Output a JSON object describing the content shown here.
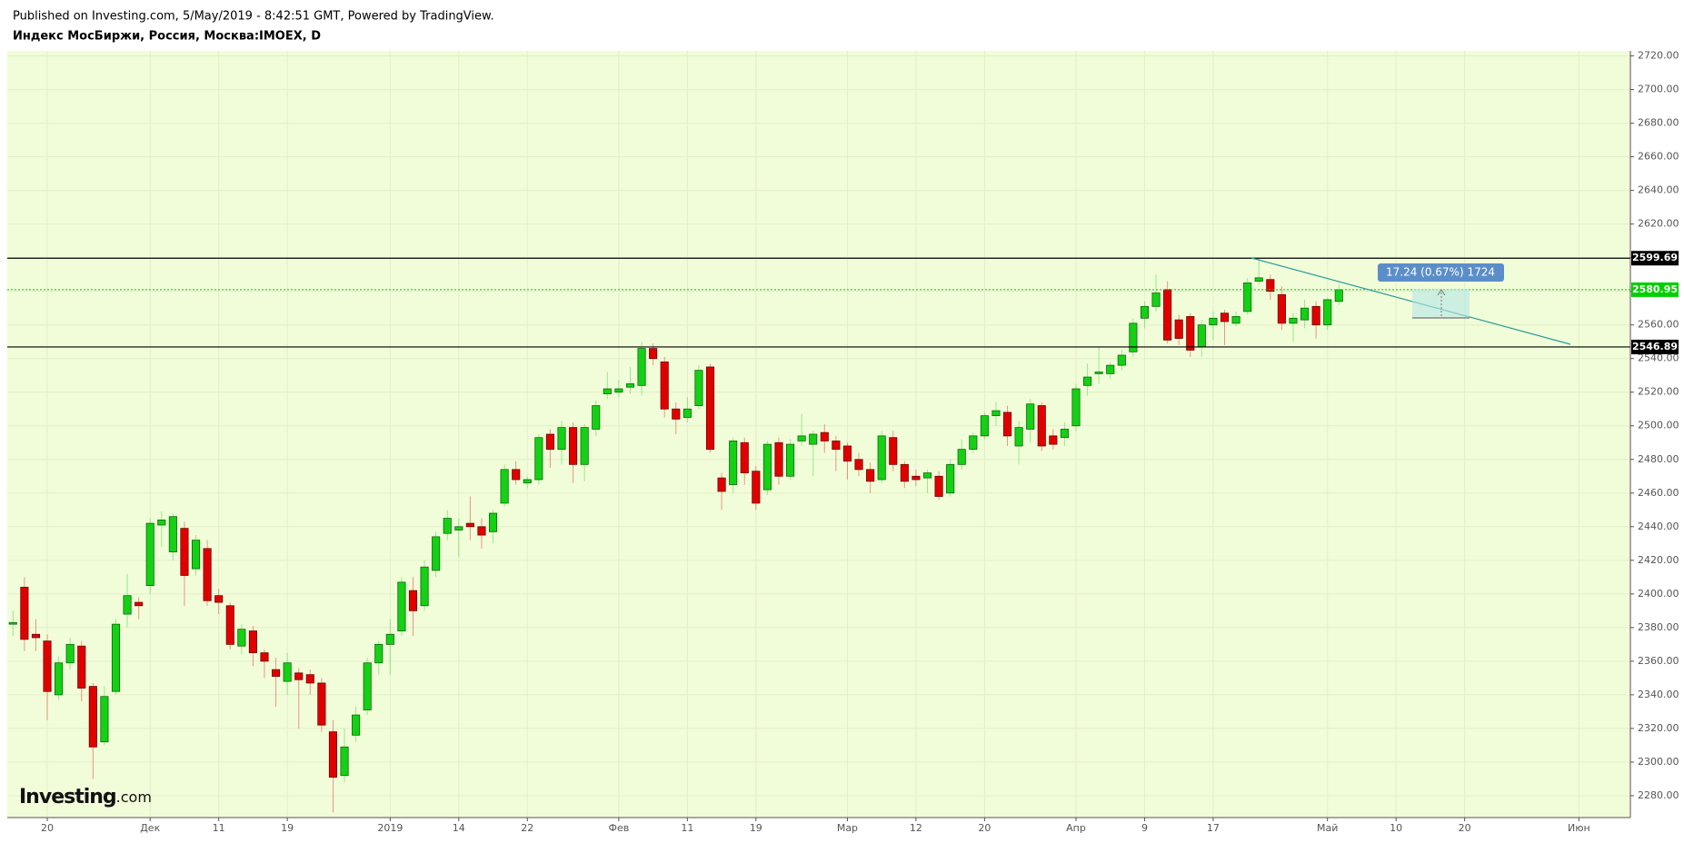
{
  "header": {
    "published": "Published on Investing.com, 5/May/2019 - 8:42:51 GMT, Powered by TradingView.",
    "symbol": "Индекс МосБиржи, Россия, Москва:IMOEX, D"
  },
  "chart_data": {
    "type": "candlestick",
    "categories": [
      null,
      null,
      null,
      "20",
      null,
      null,
      null,
      null,
      null,
      null,
      null,
      null,
      "Дек",
      null,
      null,
      null,
      null,
      null,
      "11",
      null,
      null,
      null,
      null,
      null,
      "19",
      null,
      null,
      null,
      null,
      null,
      null,
      null,
      null,
      "2019",
      null,
      null,
      null,
      null,
      null,
      "14",
      null,
      null,
      null,
      null,
      null,
      "22",
      null,
      null,
      null,
      null,
      null,
      null,
      null,
      "Фев",
      null,
      null,
      null,
      null,
      null,
      "11",
      null,
      null,
      null,
      null,
      null,
      "19",
      null,
      null,
      null,
      null,
      null,
      null,
      null,
      "Мар",
      null,
      null,
      null,
      null,
      null,
      "12",
      null,
      null,
      null,
      null,
      null,
      "20",
      null,
      null,
      null,
      null,
      null,
      null,
      null,
      "Апр",
      null,
      null,
      null,
      null,
      null,
      "9",
      null,
      null,
      null,
      null,
      null,
      "17",
      null,
      null,
      null,
      null,
      null,
      null,
      null,
      null,
      null,
      "Май",
      null,
      null,
      null,
      null,
      null,
      "10",
      null,
      null,
      null,
      null,
      null,
      "20",
      null,
      null,
      null,
      null,
      null,
      null,
      null,
      null,
      null,
      "Июн",
      null,
      null,
      null,
      null
    ],
    "open": [
      2382,
      2404,
      2376,
      2372,
      2340,
      2359,
      2369,
      2345,
      2312,
      2342,
      2388,
      2395,
      2405,
      2441,
      2425,
      2439,
      2415,
      2427,
      2399,
      2393,
      2369,
      2378,
      2365,
      2355,
      2348,
      2353,
      2352,
      2347,
      2318,
      2292,
      2316,
      2331,
      2359,
      2370,
      2378,
      2402,
      2393,
      2414,
      2436,
      2438,
      2442,
      2440,
      2437,
      2454,
      2474,
      2466,
      2468,
      2495,
      2486,
      2499,
      2477,
      2498,
      2519,
      2520,
      2523,
      2524,
      2546,
      2538,
      2510,
      2505,
      2512,
      2535,
      2469,
      2465,
      2490,
      2473,
      2462,
      2490,
      2470,
      2491,
      2489,
      2496,
      2491,
      2488,
      2480,
      2474,
      2468,
      2493,
      2477,
      2470,
      2469,
      2470,
      2460,
      2477,
      2486,
      2494,
      2506,
      2508,
      2488,
      2498,
      2512,
      2494,
      2493,
      2500,
      2524,
      2531,
      2531,
      2536,
      2544,
      2564,
      2571,
      2581,
      2563,
      2565,
      2547,
      2560,
      2567,
      2561,
      2568,
      2586,
      2587,
      2578,
      2561,
      2563,
      2571,
      2560,
      2574,
      null,
      null,
      null,
      null,
      null,
      null,
      null,
      null,
      null,
      null,
      null,
      null,
      null,
      null,
      null,
      null,
      null,
      null,
      null,
      null,
      null,
      null,
      null,
      null,
      null
    ],
    "high": [
      2390,
      2410,
      2385,
      2376,
      2363,
      2374,
      2372,
      2347,
      2345,
      2385,
      2412,
      2398,
      2445,
      2449,
      2448,
      2443,
      2435,
      2432,
      2403,
      2395,
      2382,
      2381,
      2367,
      2362,
      2365,
      2356,
      2355,
      2350,
      2325,
      2320,
      2333,
      2362,
      2372,
      2385,
      2410,
      2410,
      2420,
      2437,
      2450,
      2445,
      2458,
      2445,
      2450,
      2477,
      2479,
      2470,
      2495,
      2498,
      2503,
      2502,
      2501,
      2515,
      2532,
      2527,
      2535,
      2550,
      2549,
      2541,
      2514,
      2517,
      2536,
      2537,
      2472,
      2493,
      2493,
      2476,
      2491,
      2493,
      2492,
      2507,
      2497,
      2501,
      2494,
      2490,
      2484,
      2478,
      2497,
      2497,
      2479,
      2474,
      2474,
      2473,
      2480,
      2492,
      2496,
      2508,
      2514,
      2512,
      2503,
      2516,
      2514,
      2498,
      2502,
      2525,
      2537,
      2547,
      2538,
      2545,
      2564,
      2574,
      2590,
      2586,
      2566,
      2567,
      2563,
      2568,
      2569,
      2568,
      2588,
      2599.69,
      2590,
      2583,
      2567,
      2575,
      2574,
      2576,
      2584,
      null,
      null,
      null,
      null,
      null,
      null,
      null,
      null,
      null,
      null,
      null,
      null,
      null,
      null,
      null,
      null,
      null,
      null,
      null,
      null,
      null,
      null,
      null,
      null,
      null
    ],
    "low": [
      2375,
      2366,
      2366,
      2325,
      2337,
      2355,
      2336,
      2290,
      2310,
      2340,
      2380,
      2385,
      2400,
      2428,
      2420,
      2393,
      2411,
      2393,
      2388,
      2367,
      2364,
      2357,
      2350,
      2333,
      2340,
      2320,
      2340,
      2318,
      2270,
      2288,
      2312,
      2328,
      2352,
      2352,
      2375,
      2375,
      2390,
      2410,
      2432,
      2422,
      2432,
      2427,
      2430,
      2452,
      2465,
      2463,
      2465,
      2475,
      2477,
      2466,
      2467,
      2494,
      2516,
      2517,
      2519,
      2518,
      2536,
      2505,
      2495,
      2502,
      2510,
      2484,
      2450,
      2460,
      2465,
      2450,
      2459,
      2465,
      2468,
      2488,
      2470,
      2484,
      2473,
      2468,
      2470,
      2460,
      2466,
      2473,
      2463,
      2464,
      2460,
      2456,
      2458,
      2474,
      2484,
      2492,
      2500,
      2488,
      2477,
      2490,
      2485,
      2486,
      2488,
      2497,
      2518,
      2525,
      2528,
      2533,
      2541,
      2558,
      2568,
      2549,
      2548,
      2541,
      2541,
      2551,
      2548,
      2559,
      2566,
      2584,
      2575,
      2557,
      2550,
      2558,
      2552,
      2557,
      2572,
      null,
      null,
      null,
      null,
      null,
      null,
      null,
      null,
      null,
      null,
      null,
      null,
      null,
      null,
      null,
      null,
      null,
      null,
      null,
      null,
      null,
      null,
      null,
      null,
      null
    ],
    "close": [
      2383,
      2373,
      2374,
      2342,
      2359,
      2370,
      2344,
      2309,
      2339,
      2382,
      2399,
      2393,
      2442,
      2444,
      2446,
      2411,
      2432,
      2396,
      2395,
      2370,
      2379,
      2365,
      2360,
      2351,
      2359,
      2349,
      2347,
      2322,
      2291,
      2309,
      2328,
      2359,
      2370,
      2376,
      2407,
      2390,
      2416,
      2434,
      2445,
      2440,
      2440,
      2435,
      2448,
      2474,
      2468,
      2468,
      2493,
      2486,
      2499,
      2477,
      2499,
      2512,
      2522,
      2522,
      2525,
      2546,
      2540,
      2510,
      2504,
      2510,
      2533,
      2486,
      2461,
      2491,
      2472,
      2454,
      2489,
      2470,
      2489,
      2494,
      2495,
      2491,
      2486,
      2479,
      2474,
      2467,
      2494,
      2477,
      2467,
      2468,
      2472,
      2458,
      2477,
      2486,
      2494,
      2506,
      2509,
      2494,
      2499,
      2513,
      2488,
      2489,
      2498,
      2522,
      2529,
      2532,
      2536,
      2542,
      2561,
      2571,
      2579,
      2551,
      2552,
      2545,
      2560,
      2564,
      2562,
      2565,
      2585,
      2588,
      2580,
      2561,
      2564,
      2570,
      2560,
      2575,
      2580.95,
      null,
      null,
      null,
      null,
      null,
      null,
      null,
      null,
      null,
      null,
      null,
      null,
      null,
      null,
      null,
      null,
      null,
      null,
      null,
      null,
      null,
      null,
      null,
      null,
      null
    ],
    "up_color": "#15d015",
    "down_color": "#e00000",
    "ylim": [
      2267,
      2723
    ],
    "yticks": [
      {
        "value": 2280,
        "label": "2280.00"
      },
      {
        "value": 2300,
        "label": "2300.00"
      },
      {
        "value": 2320,
        "label": "2320.00"
      },
      {
        "value": 2340,
        "label": "2340.00"
      },
      {
        "value": 2360,
        "label": "2360.00"
      },
      {
        "value": 2380,
        "label": "2380.00"
      },
      {
        "value": 2400,
        "label": "2400.00"
      },
      {
        "value": 2420,
        "label": "2420.00"
      },
      {
        "value": 2440,
        "label": "2440.00"
      },
      {
        "value": 2460,
        "label": "2460.00"
      },
      {
        "value": 2480,
        "label": "2480.00"
      },
      {
        "value": 2500,
        "label": "2500.00"
      },
      {
        "value": 2520,
        "label": "2520.00"
      },
      {
        "value": 2540,
        "label": "2540.00"
      },
      {
        "value": 2560,
        "label": "2560.00"
      },
      {
        "value": 2580,
        "label": "2580.00"
      },
      {
        "value": 2600,
        "label": "2600.00"
      },
      {
        "value": 2620,
        "label": "2620.00"
      },
      {
        "value": 2640,
        "label": "2640.00"
      },
      {
        "value": 2660,
        "label": "2660.00"
      },
      {
        "value": 2680,
        "label": "2680.00"
      },
      {
        "value": 2700,
        "label": "2700.00"
      },
      {
        "value": 2720,
        "label": "2720.00"
      }
    ],
    "grid": true,
    "price_lines": [
      {
        "value": 2599.69,
        "color": "#000000"
      },
      {
        "value": 2546.89,
        "color": "#000000"
      }
    ],
    "last_price": {
      "value": 2580.95,
      "color": "#00d000"
    },
    "measure_label": "17.24 (0.67%) 1724",
    "watermark": {
      "name": "Investing",
      "suffix": ".com"
    }
  }
}
